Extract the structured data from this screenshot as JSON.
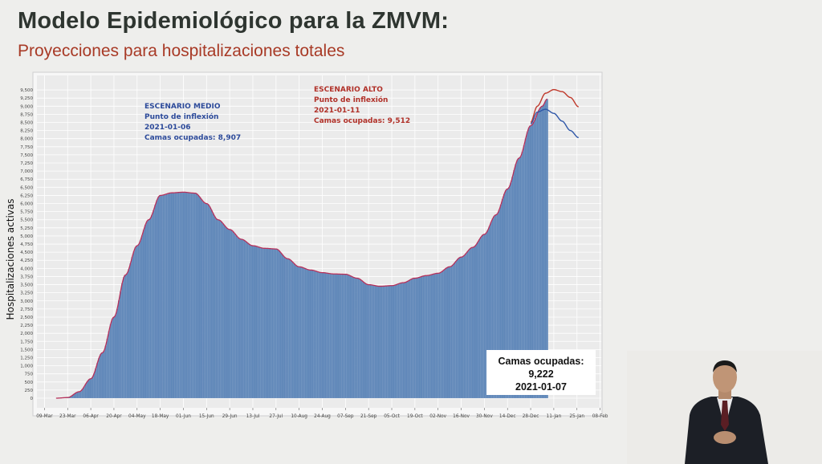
{
  "header": {
    "title": "Modelo Epidemiológico para la ZMVM:",
    "subtitle": "Proyecciones para hospitalizaciones totales"
  },
  "annotations": {
    "medio": {
      "title": "ESCENARIO MEDIO",
      "line1": "Punto de inflexión",
      "line2": "2021-01-06",
      "line3": "Camas ocupadas: 8,907",
      "color": "#2c4a9a"
    },
    "alto": {
      "title": "ESCENARIO ALTO",
      "line1": "Punto de inflexión",
      "line2": "2021-01-11",
      "line3": "Camas ocupadas: 9,512",
      "color": "#b03028"
    }
  },
  "callout": {
    "line1": "Camas ocupadas:",
    "line2": "9,222",
    "line3": "2021-01-07"
  },
  "colors": {
    "bars": "#5e86b8",
    "bar_edges": "#c9d6e6",
    "fit_line": "#b8305a",
    "medio_line": "#2f57a8",
    "alto_line": "#c0392b",
    "panel": "#ebebeb",
    "grid": "#ffffff"
  },
  "chart_data": {
    "type": "bar",
    "ylabel": "Hospitalizaciones activas",
    "xlabel": "",
    "ylim": [
      0,
      9700
    ],
    "yticks": [
      0,
      250,
      500,
      750,
      1000,
      1250,
      1500,
      1750,
      2000,
      2250,
      2500,
      2750,
      3000,
      3250,
      3500,
      3750,
      4000,
      4250,
      4500,
      4750,
      5000,
      5250,
      5500,
      5750,
      6000,
      6250,
      6500,
      6750,
      7000,
      7250,
      7500,
      7750,
      8000,
      8250,
      8500,
      8750,
      9000,
      9250,
      9500
    ],
    "ytick_labels": [
      "0",
      "250",
      "500",
      "750",
      "1,000",
      "1,250",
      "1,500",
      "1,750",
      "2,000",
      "2,250",
      "2,500",
      "2,750",
      "3,000",
      "3,250",
      "3,500",
      "3,750",
      "4,000",
      "4,250",
      "4,500",
      "4,750",
      "5,000",
      "5,250",
      "5,500",
      "5,750",
      "6,000",
      "6,250",
      "6,500",
      "6,750",
      "7,000",
      "7,250",
      "7,500",
      "7,750",
      "8,000",
      "8,250",
      "8,500",
      "8,750",
      "9,000",
      "9,250",
      "9,500"
    ],
    "xticks": [
      "09-Mar",
      "23-Mar",
      "06-Apr",
      "20-Apr",
      "04-May",
      "18-May",
      "01-Jun",
      "15-Jun",
      "29-Jun",
      "13-Jul",
      "27-Jul",
      "10-Aug",
      "24-Aug",
      "07-Sep",
      "21-Sep",
      "05-Oct",
      "19-Oct",
      "02-Nov",
      "16-Nov",
      "30-Nov",
      "14-Dec",
      "28-Dec",
      "11-Jan",
      "25-Jan",
      "08-Feb"
    ],
    "grid": true,
    "series": [
      {
        "name": "Hospitalizaciones activas",
        "kind": "bars",
        "x_start": "2020-03-16",
        "x_end": "2021-01-07",
        "keypoints": [
          [
            "2020-03-16",
            0
          ],
          [
            "2020-03-23",
            20
          ],
          [
            "2020-03-30",
            200
          ],
          [
            "2020-04-06",
            600
          ],
          [
            "2020-04-13",
            1400
          ],
          [
            "2020-04-20",
            2500
          ],
          [
            "2020-04-27",
            3800
          ],
          [
            "2020-05-04",
            4700
          ],
          [
            "2020-05-11",
            5500
          ],
          [
            "2020-05-18",
            6250
          ],
          [
            "2020-05-25",
            6330
          ],
          [
            "2020-06-01",
            6350
          ],
          [
            "2020-06-08",
            6320
          ],
          [
            "2020-06-15",
            6000
          ],
          [
            "2020-06-22",
            5500
          ],
          [
            "2020-06-29",
            5200
          ],
          [
            "2020-07-06",
            4900
          ],
          [
            "2020-07-13",
            4700
          ],
          [
            "2020-07-20",
            4620
          ],
          [
            "2020-07-27",
            4600
          ],
          [
            "2020-08-03",
            4300
          ],
          [
            "2020-08-10",
            4050
          ],
          [
            "2020-08-17",
            3950
          ],
          [
            "2020-08-24",
            3870
          ],
          [
            "2020-08-31",
            3830
          ],
          [
            "2020-09-07",
            3820
          ],
          [
            "2020-09-14",
            3700
          ],
          [
            "2020-09-21",
            3500
          ],
          [
            "2020-09-28",
            3450
          ],
          [
            "2020-10-05",
            3470
          ],
          [
            "2020-10-12",
            3560
          ],
          [
            "2020-10-19",
            3700
          ],
          [
            "2020-10-26",
            3780
          ],
          [
            "2020-11-02",
            3850
          ],
          [
            "2020-11-09",
            4050
          ],
          [
            "2020-11-16",
            4350
          ],
          [
            "2020-11-23",
            4650
          ],
          [
            "2020-11-30",
            5050
          ],
          [
            "2020-12-07",
            5650
          ],
          [
            "2020-12-14",
            6450
          ],
          [
            "2020-12-21",
            7400
          ],
          [
            "2020-12-28",
            8400
          ],
          [
            "2021-01-04",
            9000
          ],
          [
            "2021-01-07",
            9222
          ]
        ]
      },
      {
        "name": "ESCENARIO MEDIO",
        "kind": "line",
        "keypoints": [
          [
            "2020-12-28",
            8450
          ],
          [
            "2021-01-01",
            8820
          ],
          [
            "2021-01-06",
            8907
          ],
          [
            "2021-01-11",
            8780
          ],
          [
            "2021-01-16",
            8540
          ],
          [
            "2021-01-21",
            8250
          ],
          [
            "2021-01-26",
            8030
          ]
        ]
      },
      {
        "name": "ESCENARIO ALTO",
        "kind": "line",
        "keypoints": [
          [
            "2020-12-28",
            8500
          ],
          [
            "2021-01-01",
            9000
          ],
          [
            "2021-01-06",
            9400
          ],
          [
            "2021-01-11",
            9512
          ],
          [
            "2021-01-16",
            9450
          ],
          [
            "2021-01-21",
            9270
          ],
          [
            "2021-01-26",
            8980
          ]
        ]
      }
    ]
  }
}
